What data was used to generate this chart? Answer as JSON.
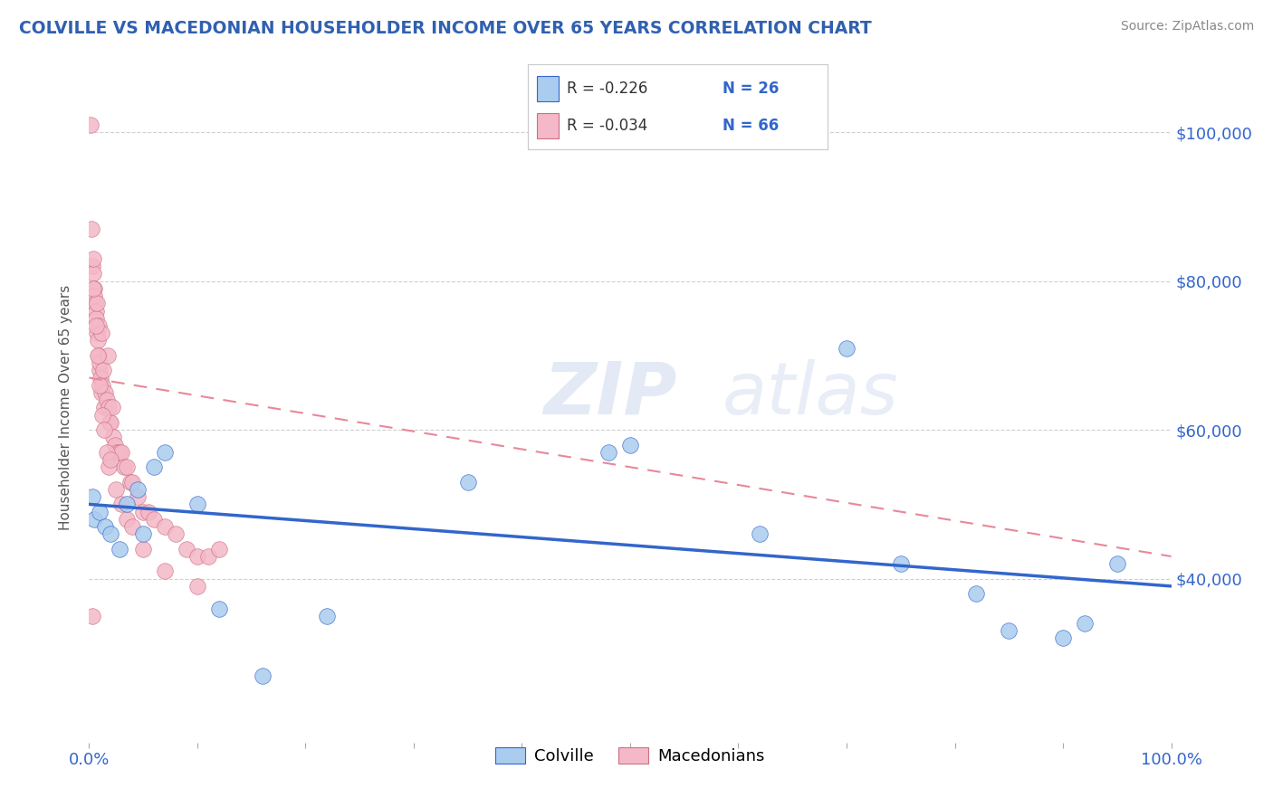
{
  "title": "COLVILLE VS MACEDONIAN HOUSEHOLDER INCOME OVER 65 YEARS CORRELATION CHART",
  "source": "Source: ZipAtlas.com",
  "ylabel": "Householder Income Over 65 years",
  "xlim": [
    0.0,
    100.0
  ],
  "ylim": [
    18000,
    108000
  ],
  "yticks": [
    40000,
    60000,
    80000,
    100000
  ],
  "ytick_labels": [
    "$40,000",
    "$60,000",
    "$80,000",
    "$100,000"
  ],
  "xticks": [
    0.0,
    10.0,
    20.0,
    30.0,
    40.0,
    50.0,
    60.0,
    70.0,
    80.0,
    90.0,
    100.0
  ],
  "colville_color": "#aaccee",
  "macedonian_color": "#f4b8c8",
  "colville_line_color": "#3366cc",
  "macedonian_line_color": "#e88898",
  "title_color": "#3060b0",
  "axis_color": "#3366cc",
  "grid_color": "#d0d0d0",
  "watermark": "ZIPatlas",
  "legend_R_colville": "R = -0.226",
  "legend_N_colville": "N = 26",
  "legend_R_macedonian": "R = -0.034",
  "legend_N_macedonian": "N = 66",
  "colville_x": [
    0.3,
    0.5,
    1.0,
    1.5,
    2.0,
    2.8,
    4.5,
    6.0,
    10.0,
    12.0,
    22.0,
    35.0,
    48.0,
    50.0,
    62.0,
    70.0,
    75.0,
    82.0,
    85.0,
    90.0,
    92.0,
    95.0,
    3.5,
    5.0,
    7.0,
    16.0
  ],
  "colville_y": [
    51000,
    48000,
    49000,
    47000,
    46000,
    44000,
    52000,
    55000,
    50000,
    36000,
    35000,
    53000,
    57000,
    58000,
    46000,
    71000,
    42000,
    38000,
    33000,
    32000,
    34000,
    42000,
    50000,
    46000,
    57000,
    27000
  ],
  "macedonian_x": [
    0.15,
    0.2,
    0.3,
    0.35,
    0.4,
    0.45,
    0.5,
    0.55,
    0.6,
    0.65,
    0.7,
    0.75,
    0.8,
    0.85,
    0.9,
    0.95,
    1.0,
    1.05,
    1.1,
    1.15,
    1.2,
    1.3,
    1.4,
    1.5,
    1.6,
    1.7,
    1.8,
    1.9,
    2.0,
    2.1,
    2.2,
    2.4,
    2.6,
    2.8,
    3.0,
    3.2,
    3.5,
    3.8,
    4.0,
    4.5,
    5.0,
    5.5,
    6.0,
    7.0,
    8.0,
    9.0,
    10.0,
    11.0,
    12.0,
    0.4,
    0.6,
    0.8,
    1.0,
    1.2,
    1.4,
    1.6,
    1.8,
    2.0,
    2.5,
    3.0,
    3.5,
    4.0,
    5.0,
    7.0,
    10.0,
    0.3
  ],
  "macedonian_y": [
    101000,
    87000,
    82000,
    81000,
    83000,
    79000,
    78000,
    77000,
    76000,
    75000,
    77000,
    73000,
    72000,
    74000,
    70000,
    68000,
    69000,
    67000,
    73000,
    65000,
    66000,
    68000,
    63000,
    65000,
    64000,
    70000,
    63000,
    61000,
    61000,
    63000,
    59000,
    58000,
    57000,
    57000,
    57000,
    55000,
    55000,
    53000,
    53000,
    51000,
    49000,
    49000,
    48000,
    47000,
    46000,
    44000,
    43000,
    43000,
    44000,
    79000,
    74000,
    70000,
    66000,
    62000,
    60000,
    57000,
    55000,
    56000,
    52000,
    50000,
    48000,
    47000,
    44000,
    41000,
    39000,
    35000
  ],
  "colville_trend_x": [
    0.0,
    100.0
  ],
  "colville_trend_y": [
    50000,
    39000
  ],
  "macedonian_trend_x": [
    0.0,
    100.0
  ],
  "macedonian_trend_y": [
    67000,
    43000
  ]
}
